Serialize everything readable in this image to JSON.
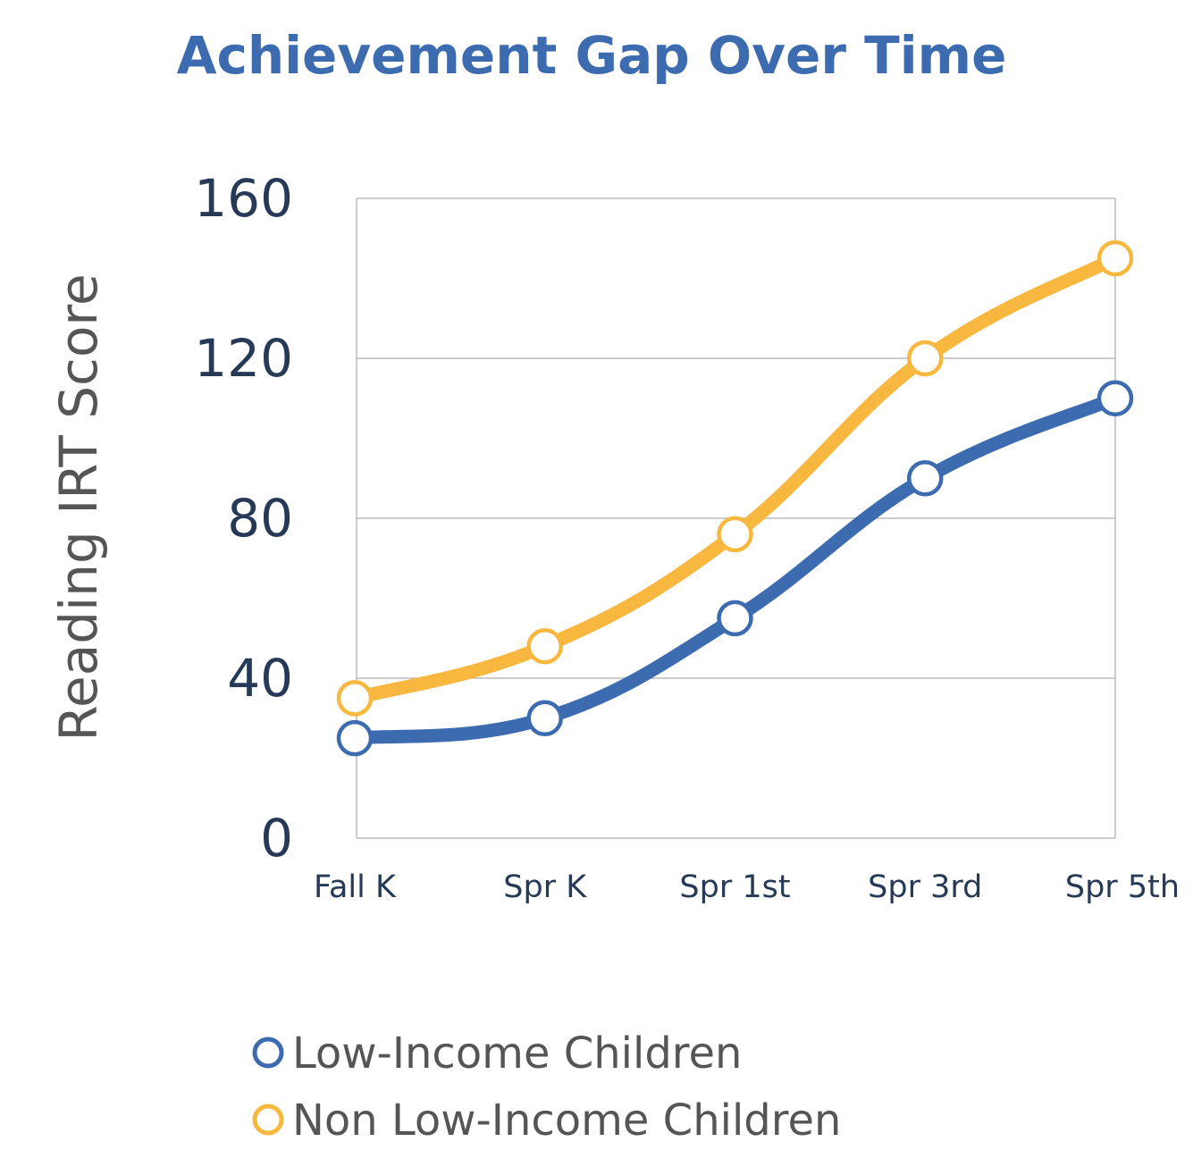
{
  "chart_data": {
    "type": "line",
    "title": "Achievement Gap Over Time",
    "ylabel": "Reading IRT Score",
    "xlabel": "",
    "categories": [
      "Fall K",
      "Spr K",
      "Spr 1st",
      "Spr 3rd",
      "Spr 5th"
    ],
    "yticks": [
      "0",
      "40",
      "80",
      "120",
      "160"
    ],
    "ylim": [
      0,
      160
    ],
    "grid": true,
    "legend_position": "bottom-left",
    "series": [
      {
        "name": "Low-Income Children",
        "values": [
          25,
          30,
          55,
          90,
          110
        ],
        "color": "#3c6bb0"
      },
      {
        "name": "Non Low-Income Children",
        "values": [
          35,
          48,
          76,
          120,
          145
        ],
        "color": "#f8b73e"
      }
    ],
    "title_color": "#3c6bb0"
  }
}
